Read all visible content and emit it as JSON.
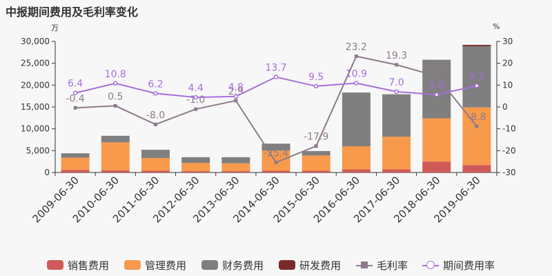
{
  "page": {
    "title": "中报期间费用及毛利率变化",
    "left_unit": "万",
    "right_unit": "%"
  },
  "chart_data": {
    "type": "bar",
    "stacked": true,
    "categories": [
      "2009-06-30",
      "2010-06-30",
      "2011-06-30",
      "2012-06-30",
      "2013-06-30",
      "2014-06-30",
      "2015-06-30",
      "2016-06-30",
      "2017-06-30",
      "2018-06-30",
      "2019-06-30"
    ],
    "ylim_left": [
      0,
      30000
    ],
    "yticks_left": [
      0,
      5000,
      10000,
      15000,
      20000,
      25000,
      30000
    ],
    "ytick_labels_left": [
      "0",
      "5,000",
      "10,000",
      "15,000",
      "20,000",
      "25,000",
      "30,000"
    ],
    "ylim_right": [
      -30,
      30
    ],
    "yticks_right": [
      -30,
      -20,
      -10,
      0,
      10,
      20,
      30
    ],
    "ytick_labels_right": [
      "-30",
      "-20",
      "-10",
      "0",
      "10",
      "20",
      "30"
    ],
    "series": [
      {
        "name": "销售费用",
        "kind": "bar",
        "color": "#d05a57",
        "values": [
          600,
          500,
          400,
          300,
          300,
          400,
          400,
          700,
          700,
          2500,
          1700
        ]
      },
      {
        "name": "管理费用",
        "kind": "bar",
        "color": "#f89a4c",
        "values": [
          2800,
          6400,
          2900,
          1900,
          1800,
          4600,
          3500,
          5300,
          7500,
          9900,
          13200
        ]
      },
      {
        "name": "财务费用",
        "kind": "bar",
        "color": "#7f7f7f",
        "values": [
          1000,
          1500,
          1900,
          1300,
          1400,
          1600,
          1000,
          12300,
          9700,
          13400,
          14000
        ]
      },
      {
        "name": "研发费用",
        "kind": "bar",
        "color": "#7b2a28",
        "values": [
          0,
          0,
          0,
          0,
          0,
          0,
          0,
          0,
          0,
          0,
          300
        ]
      },
      {
        "name": "毛利率",
        "kind": "line",
        "axis": "right",
        "color": "#8c7a8a",
        "marker": "square",
        "values": [
          -0.4,
          0.5,
          -8.0,
          -1.0,
          2.9,
          -25.4,
          -17.9,
          23.2,
          19.3,
          14.1,
          -8.8
        ],
        "labels": [
          "-0.4",
          "0.5",
          "-8.0",
          "-1.0",
          "2.9",
          "-25.4",
          "-17.9",
          "23.2",
          "19.3",
          "14.1",
          "-8.8"
        ]
      },
      {
        "name": "期间费用率",
        "kind": "line",
        "axis": "right",
        "color": "#a56fdc",
        "marker": "circle",
        "values": [
          6.4,
          10.8,
          6.2,
          4.4,
          4.8,
          13.7,
          9.5,
          10.9,
          7.0,
          5.6,
          9.7
        ],
        "labels": [
          "6.4",
          "10.8",
          "6.2",
          "4.4",
          "4.8",
          "13.7",
          "9.5",
          "10.9",
          "7.0",
          "5.6",
          "9.7"
        ]
      }
    ],
    "legend_position": "bottom",
    "grid": false
  }
}
